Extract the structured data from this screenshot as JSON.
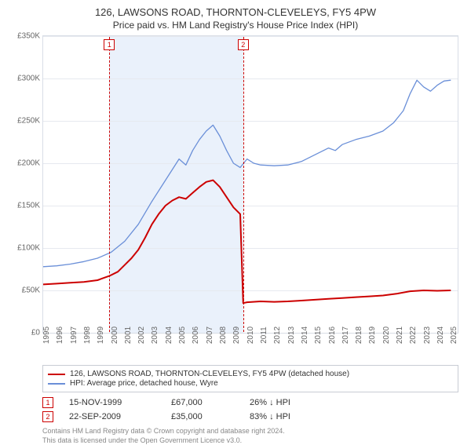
{
  "title": "126, LAWSONS ROAD, THORNTON-CLEVELEYS, FY5 4PW",
  "subtitle": "Price paid vs. HM Land Registry's House Price Index (HPI)",
  "chart": {
    "type": "line",
    "background_color": "#ffffff",
    "grid_color": "#e6e9ef",
    "shaded_color": "#eaf1fb",
    "shaded_range_years": [
      1999.87,
      2009.72
    ],
    "x": {
      "min": 1995,
      "max": 2025.5,
      "ticks": [
        1995,
        1996,
        1997,
        1998,
        1999,
        2000,
        2001,
        2002,
        2003,
        2004,
        2005,
        2006,
        2007,
        2008,
        2009,
        2010,
        2011,
        2012,
        2013,
        2014,
        2015,
        2016,
        2017,
        2018,
        2019,
        2020,
        2021,
        2022,
        2023,
        2024,
        2025
      ]
    },
    "y": {
      "min": 0,
      "max": 350000,
      "tick_step": 50000,
      "labels": [
        "£0",
        "£50K",
        "£100K",
        "£150K",
        "£200K",
        "£250K",
        "£300K",
        "£350K"
      ]
    },
    "series": [
      {
        "name": "property",
        "color": "#cc0000",
        "width": 2,
        "points": [
          [
            1995,
            57000
          ],
          [
            1996,
            58000
          ],
          [
            1997,
            59000
          ],
          [
            1998,
            60000
          ],
          [
            1999,
            62000
          ],
          [
            1999.87,
            67000
          ],
          [
            2000.5,
            72000
          ],
          [
            2001,
            80000
          ],
          [
            2001.5,
            88000
          ],
          [
            2002,
            98000
          ],
          [
            2002.5,
            112000
          ],
          [
            2003,
            128000
          ],
          [
            2003.5,
            140000
          ],
          [
            2004,
            150000
          ],
          [
            2004.5,
            156000
          ],
          [
            2005,
            160000
          ],
          [
            2005.5,
            158000
          ],
          [
            2006,
            165000
          ],
          [
            2006.5,
            172000
          ],
          [
            2007,
            178000
          ],
          [
            2007.5,
            180000
          ],
          [
            2008,
            172000
          ],
          [
            2008.5,
            160000
          ],
          [
            2009,
            148000
          ],
          [
            2009.5,
            140000
          ],
          [
            2009.72,
            35000
          ],
          [
            2010,
            36000
          ],
          [
            2011,
            37000
          ],
          [
            2012,
            36500
          ],
          [
            2013,
            37000
          ],
          [
            2014,
            38000
          ],
          [
            2015,
            39000
          ],
          [
            2016,
            40000
          ],
          [
            2017,
            41000
          ],
          [
            2018,
            42000
          ],
          [
            2019,
            43000
          ],
          [
            2020,
            44000
          ],
          [
            2021,
            46000
          ],
          [
            2022,
            49000
          ],
          [
            2023,
            50000
          ],
          [
            2024,
            49500
          ],
          [
            2025,
            50000
          ]
        ]
      },
      {
        "name": "hpi",
        "color": "#6a8fd8",
        "width": 1.3,
        "points": [
          [
            1995,
            78000
          ],
          [
            1996,
            79000
          ],
          [
            1997,
            81000
          ],
          [
            1998,
            84000
          ],
          [
            1999,
            88000
          ],
          [
            2000,
            95000
          ],
          [
            2001,
            108000
          ],
          [
            2002,
            128000
          ],
          [
            2003,
            155000
          ],
          [
            2004,
            180000
          ],
          [
            2005,
            205000
          ],
          [
            2005.5,
            198000
          ],
          [
            2006,
            215000
          ],
          [
            2006.5,
            228000
          ],
          [
            2007,
            238000
          ],
          [
            2007.5,
            245000
          ],
          [
            2008,
            232000
          ],
          [
            2008.5,
            215000
          ],
          [
            2009,
            200000
          ],
          [
            2009.5,
            195000
          ],
          [
            2010,
            205000
          ],
          [
            2010.5,
            200000
          ],
          [
            2011,
            198000
          ],
          [
            2012,
            197000
          ],
          [
            2013,
            198000
          ],
          [
            2014,
            202000
          ],
          [
            2015,
            210000
          ],
          [
            2016,
            218000
          ],
          [
            2016.5,
            215000
          ],
          [
            2017,
            222000
          ],
          [
            2018,
            228000
          ],
          [
            2019,
            232000
          ],
          [
            2020,
            238000
          ],
          [
            2020.8,
            248000
          ],
          [
            2021.5,
            262000
          ],
          [
            2022,
            282000
          ],
          [
            2022.5,
            298000
          ],
          [
            2023,
            290000
          ],
          [
            2023.5,
            285000
          ],
          [
            2024,
            292000
          ],
          [
            2024.5,
            297000
          ],
          [
            2025,
            298000
          ]
        ]
      }
    ],
    "markers": [
      {
        "id": "1",
        "year": 1999.87
      },
      {
        "id": "2",
        "year": 2009.72
      }
    ]
  },
  "legend": [
    {
      "color": "#cc0000",
      "label": "126, LAWSONS ROAD, THORNTON-CLEVELEYS, FY5 4PW (detached house)"
    },
    {
      "color": "#6a8fd8",
      "label": "HPI: Average price, detached house, Wyre"
    }
  ],
  "sales": [
    {
      "id": "1",
      "date": "15-NOV-1999",
      "price": "£67,000",
      "delta": "26% ↓ HPI"
    },
    {
      "id": "2",
      "date": "22-SEP-2009",
      "price": "£35,000",
      "delta": "83% ↓ HPI"
    }
  ],
  "footer": {
    "l1": "Contains HM Land Registry data © Crown copyright and database right 2024.",
    "l2": "This data is licensed under the Open Government Licence v3.0."
  }
}
